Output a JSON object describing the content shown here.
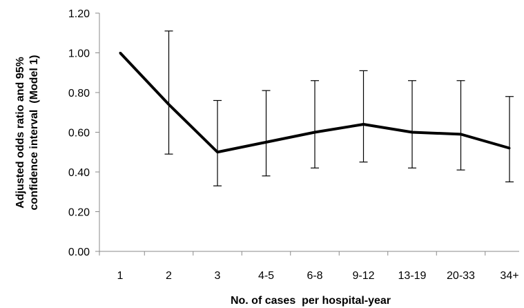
{
  "chart_data": {
    "type": "line",
    "title": "",
    "xlabel": "No. of cases  per hospital-year",
    "ylabel": [
      "Adjusted odds ratio and 95%",
      "confidence interval  (Model 1)"
    ],
    "ylim": [
      0,
      1.2
    ],
    "yticks": [
      "0.00",
      "0.20",
      "0.40",
      "0.60",
      "0.80",
      "1.00",
      "1.20"
    ],
    "grid": false,
    "legend": "none",
    "categories": [
      "1",
      "2",
      "3",
      "4-5",
      "6-8",
      "9-12",
      "13-19",
      "20-33",
      "34+"
    ],
    "series": [
      {
        "values": [
          1.0,
          0.74,
          0.5,
          0.55,
          0.6,
          0.64,
          0.6,
          0.59,
          0.52
        ],
        "ci_low": [
          null,
          0.49,
          0.33,
          0.38,
          0.42,
          0.45,
          0.42,
          0.41,
          0.35
        ],
        "ci_high": [
          null,
          1.11,
          0.76,
          0.81,
          0.86,
          0.91,
          0.86,
          0.86,
          0.78
        ],
        "color": "#000000"
      }
    ]
  }
}
